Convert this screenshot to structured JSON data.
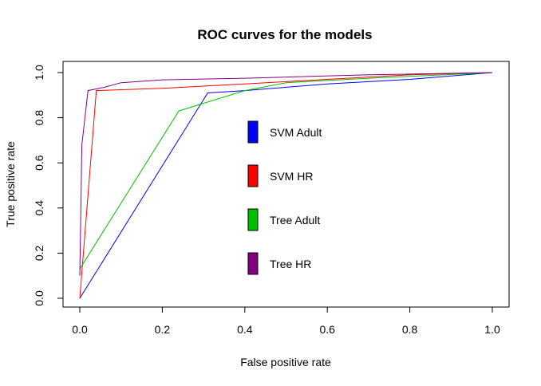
{
  "chart_data": {
    "type": "line",
    "title": "ROC curves for the models",
    "xlabel": "False positive rate",
    "ylabel": "True positive rate",
    "xlim": [
      0,
      1
    ],
    "ylim": [
      0,
      1
    ],
    "xticks": [
      "0.0",
      "0.2",
      "0.4",
      "0.6",
      "0.8",
      "1.0"
    ],
    "yticks": [
      "0.0",
      "0.2",
      "0.4",
      "0.6",
      "0.8",
      "1.0"
    ],
    "grid": false,
    "legend_position": "center",
    "series": [
      {
        "name": "SVM Adult",
        "color": "#0000FF",
        "x": [
          0,
          0.31,
          0.4,
          0.6,
          0.8,
          1.0
        ],
        "y": [
          0,
          0.91,
          0.92,
          0.95,
          0.97,
          1.0
        ]
      },
      {
        "name": "SVM HR",
        "color": "#FF0000",
        "x": [
          0,
          0.04,
          0.2,
          0.4,
          0.6,
          0.8,
          1.0
        ],
        "y": [
          0,
          0.92,
          0.93,
          0.95,
          0.97,
          0.99,
          1.0
        ]
      },
      {
        "name": "Tree Adult",
        "color": "#00C000",
        "x": [
          0,
          0.24,
          0.4,
          0.5,
          0.7,
          1.0
        ],
        "y": [
          0.13,
          0.83,
          0.92,
          0.955,
          0.975,
          1.0
        ]
      },
      {
        "name": "Tree HR",
        "color": "#800080",
        "x": [
          0,
          0.005,
          0.02,
          0.06,
          0.1,
          0.2,
          0.4,
          0.7,
          1.0
        ],
        "y": [
          0.1,
          0.68,
          0.92,
          0.935,
          0.955,
          0.968,
          0.975,
          0.99,
          1.0
        ]
      }
    ]
  }
}
